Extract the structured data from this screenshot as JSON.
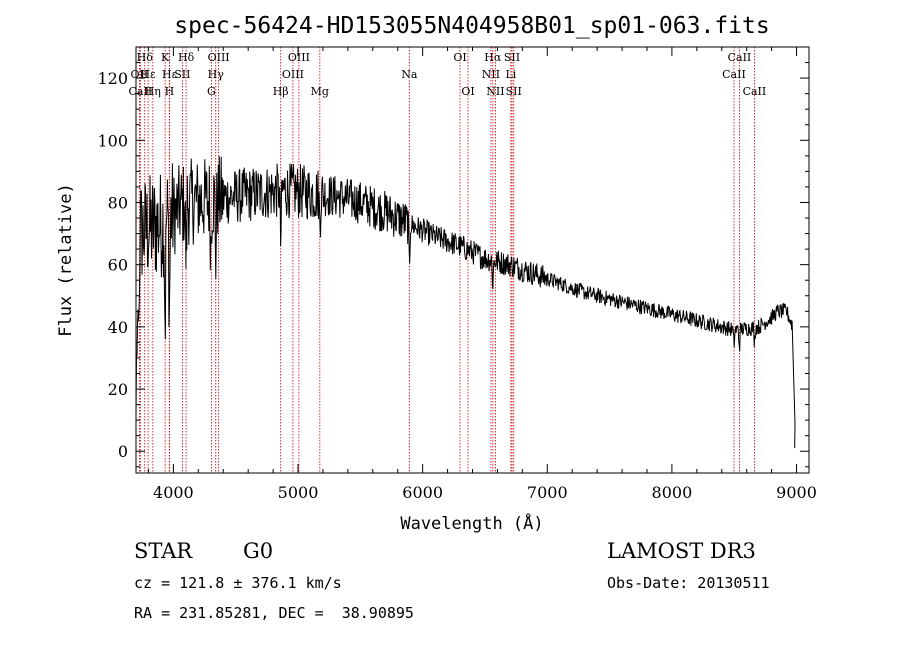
{
  "chart_data": {
    "type": "line",
    "title": "spec-56424-HD153055N404958B01_sp01-063.fits",
    "xlabel": "Wavelength (Å)",
    "ylabel": "Flux (relative)",
    "xlim": [
      3700,
      9100
    ],
    "ylim": [
      -7,
      130
    ],
    "x_ticks": [
      4000,
      5000,
      6000,
      7000,
      8000,
      9000
    ],
    "y_ticks": [
      0,
      20,
      40,
      60,
      80,
      100,
      120
    ],
    "x_minor_step": 200,
    "y_minor_step": 5,
    "continuum": [
      [
        3700,
        70
      ],
      [
        3900,
        73
      ],
      [
        4100,
        80
      ],
      [
        4300,
        81
      ],
      [
        4500,
        82
      ],
      [
        4700,
        83
      ],
      [
        4900,
        84
      ],
      [
        5100,
        83
      ],
      [
        5300,
        82
      ],
      [
        5500,
        80
      ],
      [
        5700,
        77
      ],
      [
        5900,
        73
      ],
      [
        6100,
        69
      ],
      [
        6300,
        66
      ],
      [
        6500,
        62
      ],
      [
        6700,
        60
      ],
      [
        6900,
        57
      ],
      [
        7100,
        54
      ],
      [
        7300,
        51
      ],
      [
        7500,
        49
      ],
      [
        7700,
        47
      ],
      [
        7900,
        45
      ],
      [
        8100,
        43
      ],
      [
        8300,
        41
      ],
      [
        8500,
        39
      ],
      [
        8700,
        40
      ],
      [
        8800,
        43
      ],
      [
        8850,
        45
      ],
      [
        8920,
        45
      ],
      [
        8960,
        41
      ]
    ],
    "absorption_features": [
      {
        "x": 3934,
        "depth": 35
      },
      {
        "x": 3968,
        "depth": 30
      },
      {
        "x": 4102,
        "depth": 20
      },
      {
        "x": 4300,
        "depth": 15
      },
      {
        "x": 4340,
        "depth": 18
      },
      {
        "x": 4861,
        "depth": 18
      },
      {
        "x": 5175,
        "depth": 10
      },
      {
        "x": 5893,
        "depth": 14
      },
      {
        "x": 6563,
        "depth": 8
      },
      {
        "x": 8498,
        "depth": 5
      },
      {
        "x": 8542,
        "depth": 6
      },
      {
        "x": 8662,
        "depth": 5
      }
    ],
    "spectral_lines": [
      {
        "label": "Hδ",
        "x": 3770,
        "row": 1
      },
      {
        "label": "OII",
        "x": 3727,
        "row": 2
      },
      {
        "label": "CaII",
        "x": 3735,
        "row": 3
      },
      {
        "label": "Hε",
        "x": 3797,
        "row": 2
      },
      {
        "label": "Hη",
        "x": 3835,
        "row": 3
      },
      {
        "label": "K",
        "x": 3934,
        "row": 1
      },
      {
        "label": "Hε",
        "x": 3970,
        "row": 2
      },
      {
        "label": "H",
        "x": 3968,
        "row": 3
      },
      {
        "label": "SII",
        "x": 4072,
        "row": 2
      },
      {
        "label": "Hδ",
        "x": 4102,
        "row": 1
      },
      {
        "label": "OIII",
        "x": 4363,
        "row": 1
      },
      {
        "label": "Hγ",
        "x": 4340,
        "row": 2
      },
      {
        "label": "G",
        "x": 4305,
        "row": 3
      },
      {
        "label": "Hβ",
        "x": 4861,
        "row": 3
      },
      {
        "label": "OIII",
        "x": 5007,
        "row": 1
      },
      {
        "label": "OIII",
        "x": 4959,
        "row": 2
      },
      {
        "label": "Mg",
        "x": 5175,
        "row": 3
      },
      {
        "label": "Na",
        "x": 5893,
        "row": 2
      },
      {
        "label": "OI",
        "x": 6300,
        "row": 1
      },
      {
        "label": "OI",
        "x": 6364,
        "row": 3
      },
      {
        "label": "Hα",
        "x": 6563,
        "row": 1
      },
      {
        "label": "NII",
        "x": 6548,
        "row": 2
      },
      {
        "label": "NII",
        "x": 6584,
        "row": 3
      },
      {
        "label": "SII",
        "x": 6717,
        "row": 1
      },
      {
        "label": "Li",
        "x": 6708,
        "row": 2
      },
      {
        "label": "SII",
        "x": 6731,
        "row": 3
      },
      {
        "label": "CaII",
        "x": 8542,
        "row": 1
      },
      {
        "label": "CaII",
        "x": 8498,
        "row": 2
      },
      {
        "label": "CaII",
        "x": 8662,
        "row": 3
      }
    ],
    "line_color": "#000000",
    "marker_color": "#cc0000"
  },
  "info": {
    "object_class": "STAR",
    "subclass": "G0",
    "survey": "LAMOST DR3",
    "cz": "cz = 121.8 ± 376.1 km/s",
    "obs_date": "Obs-Date: 20130511",
    "coords": "RA = 231.85281, DEC =  38.90895"
  }
}
